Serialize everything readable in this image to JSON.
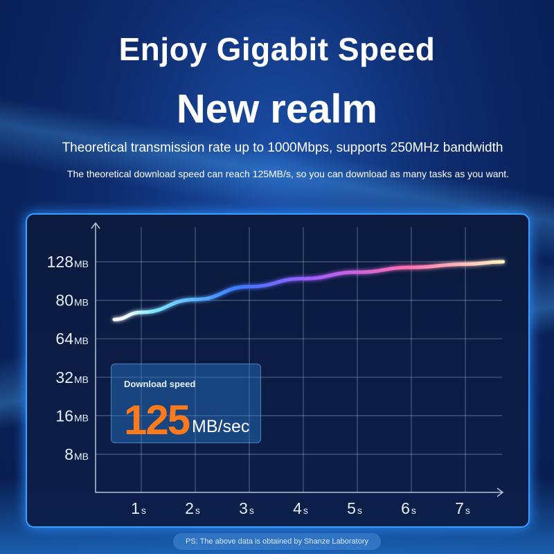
{
  "header": {
    "title": "Enjoy Gigabit Speed",
    "subtitle": "New realm",
    "line1": "Theoretical transmission rate up to 1000Mbps, supports 250MHz bandwidth",
    "line2": "The theoretical download speed can reach 125MB/s, so you can download as many tasks as you want."
  },
  "card": {
    "label": "Download speed",
    "value": "125",
    "unit": "MB/sec",
    "value_color": "#ff7a1a"
  },
  "footnote": "PS: The above data is obtained by Shanze Laboratory",
  "chart_data": {
    "type": "line",
    "y_ticks": [
      {
        "v": "128",
        "u": "MB"
      },
      {
        "v": "80",
        "u": "MB"
      },
      {
        "v": "64",
        "u": "MB"
      },
      {
        "v": "32",
        "u": "MB"
      },
      {
        "v": "16",
        "u": "MB"
      },
      {
        "v": "8",
        "u": "MB"
      }
    ],
    "x_ticks": [
      {
        "v": "1",
        "u": "s"
      },
      {
        "v": "2",
        "u": "s"
      },
      {
        "v": "3",
        "u": "s"
      },
      {
        "v": "4",
        "u": "s"
      },
      {
        "v": "5",
        "u": "s"
      },
      {
        "v": "6",
        "u": "s"
      },
      {
        "v": "7",
        "u": "s"
      }
    ],
    "x": [
      0.5,
      1,
      2,
      3,
      4,
      5,
      6,
      7,
      7.7
    ],
    "y": [
      72,
      75,
      81,
      97,
      107,
      115,
      121,
      125,
      128
    ],
    "grid": true,
    "line_colors": [
      "#7fe8ff",
      "#3a7bff",
      "#a25cff",
      "#ff6fb0",
      "#ffd27a"
    ]
  }
}
